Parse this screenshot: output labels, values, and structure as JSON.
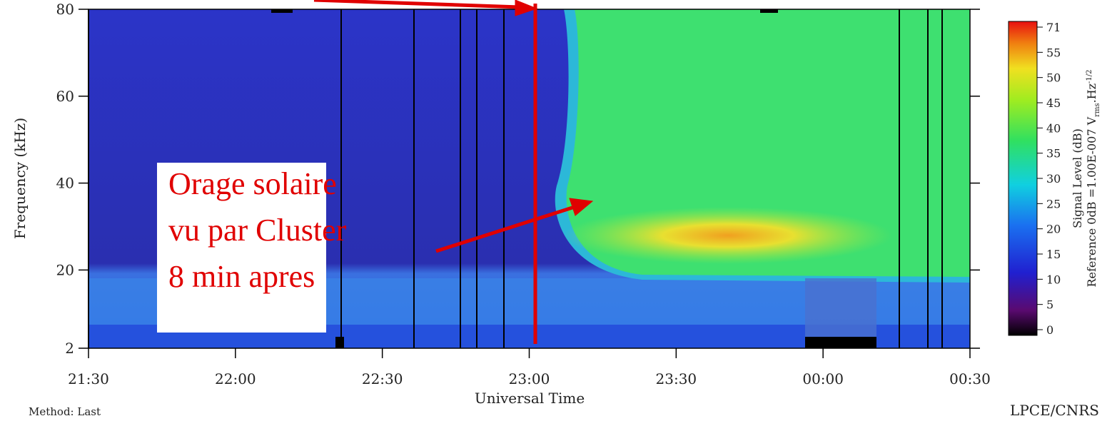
{
  "chart_data": {
    "type": "heatmap",
    "y_label": "Frequency (kHz)",
    "x_label": "Universal Time",
    "xlim": [
      0,
      180
    ],
    "xticks": [
      {
        "value": 0,
        "label": "21:30"
      },
      {
        "value": 30,
        "label": "22:00"
      },
      {
        "value": 60,
        "label": "22:30"
      },
      {
        "value": 90,
        "label": "23:00"
      },
      {
        "value": 120,
        "label": "23:30"
      },
      {
        "value": 150,
        "label": "00:00"
      },
      {
        "value": 180,
        "label": "00:30"
      }
    ],
    "ylim": [
      2,
      80
    ],
    "yticks": [
      2,
      20,
      40,
      60,
      80
    ],
    "colorbar": {
      "label": "Signal Level (dB)",
      "reference": "Reference 0dB =1.00E-007 V",
      "reference_sub": "rms",
      "reference_unit": ".Hz",
      "reference_sup": "-1/2",
      "ticks": [
        0,
        5,
        10,
        15,
        20,
        25,
        30,
        35,
        40,
        45,
        50,
        55,
        71
      ]
    },
    "annotation": [
      "Orage solaire",
      "vu par Cluster",
      "8 min apres"
    ],
    "footer_left": "Method: Last",
    "footer_right": "LPCE/CNRS"
  }
}
